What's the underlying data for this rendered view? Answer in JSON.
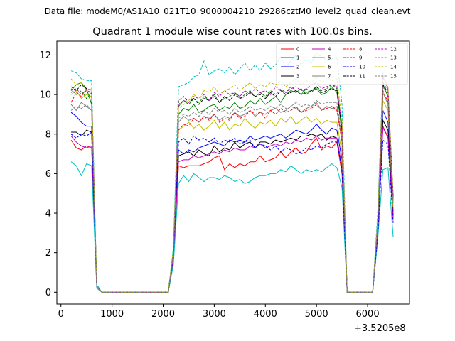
{
  "figure": {
    "suptitle": "Data file: modeM0/AS1A10_021T10_9000004210_29286cztM0_level2_quad_clean.evt",
    "title": "Quadrant 1 module wise count rates with 100.0s bins.",
    "offset_label": "+3.5205e8"
  },
  "chart_data": {
    "type": "line",
    "title": "Quadrant 1 module wise count rates with 100.0s bins.",
    "xlabel": "",
    "ylabel": "",
    "x_offset": "+3.5205e8",
    "xlim": [
      -80,
      6820
    ],
    "ylim": [
      -0.6,
      12.7
    ],
    "xticks": [
      0,
      1000,
      2000,
      3000,
      4000,
      5000,
      6000
    ],
    "yticks": [
      0,
      2,
      4,
      6,
      8,
      10,
      12
    ],
    "grid": false,
    "legend_position": "top-right",
    "x": [
      200,
      300,
      400,
      500,
      600,
      700,
      800,
      900,
      1000,
      1100,
      1200,
      1300,
      1400,
      1500,
      1600,
      1700,
      1800,
      1900,
      2000,
      2100,
      2200,
      2300,
      2400,
      2500,
      2600,
      2700,
      2800,
      2900,
      3000,
      3100,
      3200,
      3300,
      3400,
      3500,
      3600,
      3700,
      3800,
      3900,
      4000,
      4100,
      4200,
      4300,
      4400,
      4500,
      4600,
      4700,
      4800,
      4900,
      5000,
      5100,
      5200,
      5300,
      5400,
      5500,
      5600,
      5700,
      5800,
      5900,
      6000,
      6100,
      6200,
      6300,
      6400,
      6500
    ],
    "series": [
      {
        "name": "0",
        "color": "#ff0000",
        "dash": false,
        "values": [
          7.7,
          7.3,
          7.2,
          7.4,
          7.3,
          0.3,
          0.0,
          0,
          0,
          0,
          0,
          0,
          0,
          0,
          0,
          0,
          0,
          0,
          0,
          0,
          1.6,
          6.4,
          6.3,
          6.4,
          6.4,
          6.4,
          6.5,
          6.6,
          6.8,
          6.9,
          6.2,
          6.5,
          6.3,
          6.5,
          6.4,
          6.6,
          6.6,
          6.9,
          6.6,
          6.7,
          6.8,
          7.1,
          6.8,
          7.1,
          7.3,
          7.0,
          7.1,
          7.5,
          7.8,
          7.2,
          7.4,
          7.3,
          7.6,
          6.0,
          0.0,
          0,
          0,
          0,
          0,
          0.0,
          3.0,
          8.4,
          7.8,
          3.8
        ]
      },
      {
        "name": "1",
        "color": "#008000",
        "dash": false,
        "values": [
          10.2,
          10.5,
          10.6,
          10.3,
          9.5,
          0.3,
          0.0,
          0,
          0,
          0,
          0,
          0,
          0,
          0,
          0,
          0,
          0,
          0,
          0,
          0,
          2.1,
          9.0,
          9.3,
          9.2,
          9.5,
          9.1,
          9.2,
          9.4,
          9.5,
          9.2,
          9.4,
          9.3,
          9.6,
          9.3,
          9.4,
          9.7,
          9.5,
          9.8,
          9.5,
          9.7,
          9.9,
          9.6,
          10.0,
          10.2,
          10.1,
          10.3,
          10.0,
          10.2,
          10.3,
          10.0,
          10.1,
          10.4,
          10.1,
          8.1,
          0.0,
          0,
          0,
          0,
          0,
          0.0,
          3.6,
          10.5,
          9.9,
          4.7
        ]
      },
      {
        "name": "2",
        "color": "#0000ff",
        "dash": false,
        "values": [
          9.1,
          8.9,
          8.6,
          8.4,
          8.4,
          0.3,
          0.0,
          0,
          0,
          0,
          0,
          0,
          0,
          0,
          0,
          0,
          0,
          0,
          0,
          0,
          1.7,
          7.2,
          7.0,
          7.2,
          7.1,
          7.3,
          7.4,
          7.5,
          7.6,
          7.5,
          7.4,
          7.7,
          7.6,
          7.7,
          7.6,
          7.9,
          7.7,
          7.8,
          7.9,
          7.8,
          7.9,
          8.0,
          7.8,
          8.0,
          8.2,
          8.1,
          8.0,
          8.2,
          8.5,
          8.2,
          8.0,
          8.3,
          8.2,
          6.7,
          0.0,
          0,
          0,
          0,
          0,
          0.0,
          3.1,
          9.2,
          8.6,
          4.1
        ]
      },
      {
        "name": "3",
        "color": "#000000",
        "dash": false,
        "values": [
          8.1,
          8.1,
          7.9,
          8.2,
          8.1,
          0.3,
          0.0,
          0,
          0,
          0,
          0,
          0,
          0,
          0,
          0,
          0,
          0,
          0,
          0,
          0,
          1.8,
          6.9,
          7.0,
          7.1,
          6.9,
          7.2,
          7.0,
          6.9,
          7.4,
          7.1,
          7.3,
          7.2,
          7.6,
          7.3,
          7.5,
          7.6,
          7.3,
          7.6,
          7.6,
          7.5,
          7.7,
          7.6,
          7.7,
          7.8,
          7.7,
          7.9,
          7.9,
          8.0,
          7.9,
          8.0,
          7.7,
          7.9,
          7.8,
          6.3,
          0.0,
          0,
          0,
          0,
          0,
          0.0,
          3.0,
          8.7,
          8.2,
          3.9
        ]
      },
      {
        "name": "4",
        "color": "#bf00bf",
        "dash": false,
        "values": [
          7.9,
          7.6,
          7.4,
          7.3,
          7.4,
          0.3,
          0.0,
          0,
          0,
          0,
          0,
          0,
          0,
          0,
          0,
          0,
          0,
          0,
          0,
          0,
          1.5,
          6.6,
          6.7,
          6.7,
          6.9,
          6.8,
          6.9,
          7.0,
          7.1,
          7.0,
          7.2,
          7.1,
          7.3,
          7.2,
          7.2,
          7.4,
          7.3,
          7.5,
          7.3,
          7.4,
          7.5,
          7.4,
          7.6,
          7.5,
          7.7,
          7.6,
          7.8,
          7.7,
          7.9,
          7.7,
          7.8,
          7.8,
          7.8,
          6.3,
          0.0,
          0,
          0,
          0,
          0,
          0.0,
          2.9,
          8.3,
          7.9,
          3.7
        ]
      },
      {
        "name": "5",
        "color": "#00bfbf",
        "dash": false,
        "values": [
          6.6,
          6.4,
          5.9,
          6.5,
          6.4,
          0.2,
          0.0,
          0,
          0,
          0,
          0,
          0,
          0,
          0,
          0,
          0,
          0,
          0,
          0,
          0,
          1.4,
          5.5,
          5.9,
          5.6,
          6.0,
          5.8,
          5.6,
          5.8,
          5.8,
          5.7,
          5.9,
          5.8,
          5.6,
          5.7,
          5.5,
          5.6,
          5.8,
          5.9,
          5.9,
          6.0,
          6.0,
          6.2,
          6.1,
          6.4,
          6.2,
          6.0,
          6.2,
          6.1,
          6.2,
          6.1,
          6.3,
          6.5,
          6.3,
          5.3,
          0.0,
          0,
          0,
          0,
          0,
          0.0,
          2.7,
          6.2,
          6.3,
          2.8
        ]
      },
      {
        "name": "6",
        "color": "#bfbf00",
        "dash": false,
        "values": [
          10.0,
          10.2,
          9.8,
          10.0,
          9.9,
          0.3,
          0.0,
          0,
          0,
          0,
          0,
          0,
          0,
          0,
          0,
          0,
          0,
          0,
          0,
          0,
          1.9,
          8.2,
          8.4,
          8.6,
          8.3,
          8.5,
          8.2,
          8.4,
          8.7,
          8.3,
          8.6,
          8.2,
          8.5,
          8.4,
          8.8,
          8.5,
          8.3,
          8.6,
          8.5,
          8.7,
          8.4,
          8.8,
          8.6,
          8.9,
          8.5,
          8.7,
          8.9,
          8.6,
          8.8,
          8.5,
          8.7,
          8.6,
          8.6,
          7.0,
          0.0,
          0,
          0,
          0,
          0,
          0.0,
          3.3,
          9.7,
          9.2,
          4.3
        ]
      },
      {
        "name": "7",
        "color": "#808080",
        "dash": false,
        "values": [
          9.5,
          9.2,
          9.6,
          9.4,
          9.2,
          0.3,
          0.0,
          0,
          0,
          0,
          0,
          0,
          0,
          0,
          0,
          0,
          0,
          0,
          0,
          0,
          1.8,
          8.6,
          8.9,
          8.7,
          8.8,
          8.6,
          8.9,
          8.8,
          9.0,
          8.7,
          8.9,
          8.8,
          9.1,
          8.9,
          9.0,
          9.2,
          8.9,
          9.1,
          9.0,
          9.2,
          9.3,
          9.1,
          9.2,
          9.4,
          9.3,
          9.1,
          9.3,
          9.4,
          9.6,
          9.2,
          9.4,
          9.3,
          9.4,
          7.6,
          0.0,
          0,
          0,
          0,
          0,
          0.0,
          3.3,
          10.1,
          9.5,
          4.5
        ]
      },
      {
        "name": "8",
        "color": "#ff0000",
        "dash": true,
        "values": [
          9.6,
          10.1,
          9.9,
          10.3,
          10.0,
          0.3,
          0.0,
          0,
          0,
          0,
          0,
          0,
          0,
          0,
          0,
          0,
          0,
          0,
          0,
          0,
          2.0,
          8.2,
          8.5,
          8.4,
          8.8,
          8.6,
          8.9,
          8.7,
          9.0,
          8.6,
          8.8,
          8.7,
          9.1,
          8.8,
          8.9,
          9.2,
          9.0,
          9.1,
          8.8,
          9.2,
          9.0,
          9.3,
          9.1,
          9.2,
          9.4,
          9.1,
          9.2,
          9.3,
          9.5,
          9.2,
          9.3,
          9.4,
          9.2,
          7.6,
          0.0,
          0,
          0,
          0,
          0,
          0.0,
          3.4,
          10.2,
          9.6,
          4.6
        ]
      },
      {
        "name": "9",
        "color": "#008000",
        "dash": true,
        "values": [
          10.3,
          10.0,
          10.2,
          9.8,
          10.1,
          0.3,
          0.0,
          0,
          0,
          0,
          0,
          0,
          0,
          0,
          0,
          0,
          0,
          0,
          0,
          0,
          2.1,
          9.4,
          9.7,
          9.5,
          9.8,
          9.6,
          9.9,
          9.7,
          10.0,
          9.6,
          9.8,
          9.9,
          10.1,
          9.8,
          10.0,
          10.2,
          9.9,
          10.1,
          9.9,
          10.2,
          10.0,
          10.3,
          10.1,
          10.4,
          10.2,
          10.0,
          10.3,
          10.1,
          10.4,
          10.2,
          10.3,
          10.5,
          10.3,
          8.3,
          0.0,
          0,
          0,
          0,
          0,
          0.0,
          3.7,
          10.6,
          10.2,
          4.8
        ]
      },
      {
        "name": "10",
        "color": "#0000ff",
        "dash": true,
        "values": [
          8.0,
          7.8,
          8.0,
          7.9,
          8.1,
          0.3,
          0.0,
          0,
          0,
          0,
          0,
          0,
          0,
          0,
          0,
          0,
          0,
          0,
          0,
          0,
          1.8,
          7.6,
          7.8,
          7.5,
          7.9,
          7.7,
          7.8,
          7.6,
          7.8,
          7.5,
          7.7,
          7.6,
          7.8,
          7.5,
          7.6,
          7.7,
          7.3,
          7.5,
          7.4,
          7.2,
          7.4,
          7.1,
          7.3,
          7.2,
          7.0,
          7.1,
          7.3,
          7.2,
          7.4,
          7.3,
          7.5,
          7.6,
          7.6,
          6.2,
          0.0,
          0,
          0,
          0,
          0,
          0.0,
          2.9,
          7.7,
          7.5,
          3.5
        ]
      },
      {
        "name": "11",
        "color": "#000000",
        "dash": true,
        "values": [
          10.4,
          10.2,
          10.5,
          10.3,
          10.2,
          0.3,
          0.0,
          0,
          0,
          0,
          0,
          0,
          0,
          0,
          0,
          0,
          0,
          0,
          0,
          0,
          2.1,
          9.7,
          9.9,
          9.6,
          9.8,
          9.5,
          9.8,
          9.7,
          9.9,
          9.6,
          9.9,
          9.7,
          10.0,
          9.8,
          9.9,
          10.1,
          9.9,
          10.0,
          9.8,
          10.1,
          9.9,
          10.2,
          10.0,
          10.1,
          10.2,
          10.0,
          10.1,
          10.2,
          10.4,
          10.1,
          10.2,
          10.3,
          10.2,
          8.2,
          0.0,
          0,
          0,
          0,
          0,
          0.0,
          3.6,
          10.5,
          10.1,
          4.8
        ]
      },
      {
        "name": "12",
        "color": "#bf00bf",
        "dash": true,
        "values": [
          10.1,
          10.3,
          10.0,
          10.2,
          10.1,
          0.3,
          0.0,
          0,
          0,
          0,
          0,
          0,
          0,
          0,
          0,
          0,
          0,
          0,
          0,
          0,
          2.0,
          9.5,
          9.7,
          9.6,
          9.9,
          9.8,
          10.0,
          9.7,
          10.1,
          9.9,
          10.2,
          10.0,
          10.1,
          9.9,
          10.2,
          10.0,
          10.3,
          10.1,
          10.2,
          10.0,
          10.4,
          10.2,
          10.1,
          10.3,
          10.4,
          10.2,
          10.3,
          10.5,
          10.6,
          10.3,
          10.4,
          10.5,
          10.4,
          8.4,
          0.0,
          0,
          0,
          0,
          0,
          0.0,
          3.7,
          10.9,
          10.3,
          4.9
        ]
      },
      {
        "name": "13",
        "color": "#00bfbf",
        "dash": true,
        "values": [
          11.2,
          11.1,
          10.8,
          10.7,
          10.7,
          0.4,
          0.0,
          0,
          0,
          0,
          0,
          0,
          0,
          0,
          0,
          0,
          0,
          0,
          0,
          0,
          2.3,
          10.4,
          10.5,
          10.6,
          10.9,
          11.0,
          11.7,
          11.0,
          11.2,
          11.3,
          11.1,
          11.4,
          11.0,
          11.3,
          11.6,
          11.2,
          11.5,
          11.2,
          11.6,
          11.3,
          11.5,
          11.9,
          11.4,
          11.7,
          12.0,
          11.5,
          11.8,
          11.6,
          12.1,
          11.9,
          11.7,
          11.8,
          11.9,
          9.5,
          0.0,
          0,
          0,
          0,
          0,
          0.0,
          4.1,
          11.1,
          10.3,
          4.5
        ]
      },
      {
        "name": "14",
        "color": "#bfbf00",
        "dash": true,
        "values": [
          10.8,
          10.5,
          10.6,
          10.2,
          10.3,
          0.3,
          0.0,
          0,
          0,
          0,
          0,
          0,
          0,
          0,
          0,
          0,
          0,
          0,
          0,
          0,
          2.2,
          9.3,
          9.5,
          9.7,
          10.0,
          9.8,
          10.2,
          10.1,
          10.4,
          10.0,
          10.2,
          10.3,
          10.5,
          10.2,
          10.4,
          10.6,
          10.3,
          10.5,
          10.4,
          10.6,
          10.5,
          10.7,
          10.4,
          10.6,
          10.8,
          10.5,
          10.7,
          10.6,
          10.9,
          10.6,
          10.8,
          10.7,
          10.8,
          8.7,
          0.0,
          0,
          0,
          0,
          0,
          0.0,
          3.8,
          11.0,
          10.4,
          4.9
        ]
      },
      {
        "name": "15",
        "color": "#808080",
        "dash": true,
        "values": [
          9.2,
          9.4,
          9.3,
          9.5,
          9.2,
          0.3,
          0.0,
          0,
          0,
          0,
          0,
          0,
          0,
          0,
          0,
          0,
          0,
          0,
          0,
          0,
          1.9,
          8.8,
          9.0,
          8.9,
          9.1,
          8.9,
          9.2,
          9.0,
          9.3,
          9.1,
          9.2,
          9.0,
          9.3,
          9.1,
          9.2,
          9.4,
          9.2,
          9.3,
          9.2,
          9.4,
          9.3,
          9.5,
          9.3,
          9.4,
          9.6,
          9.4,
          9.5,
          9.4,
          9.7,
          9.5,
          9.6,
          9.6,
          9.6,
          7.8,
          0.0,
          0,
          0,
          0,
          0,
          0.0,
          3.5,
          10.4,
          9.9,
          4.6
        ]
      }
    ]
  }
}
